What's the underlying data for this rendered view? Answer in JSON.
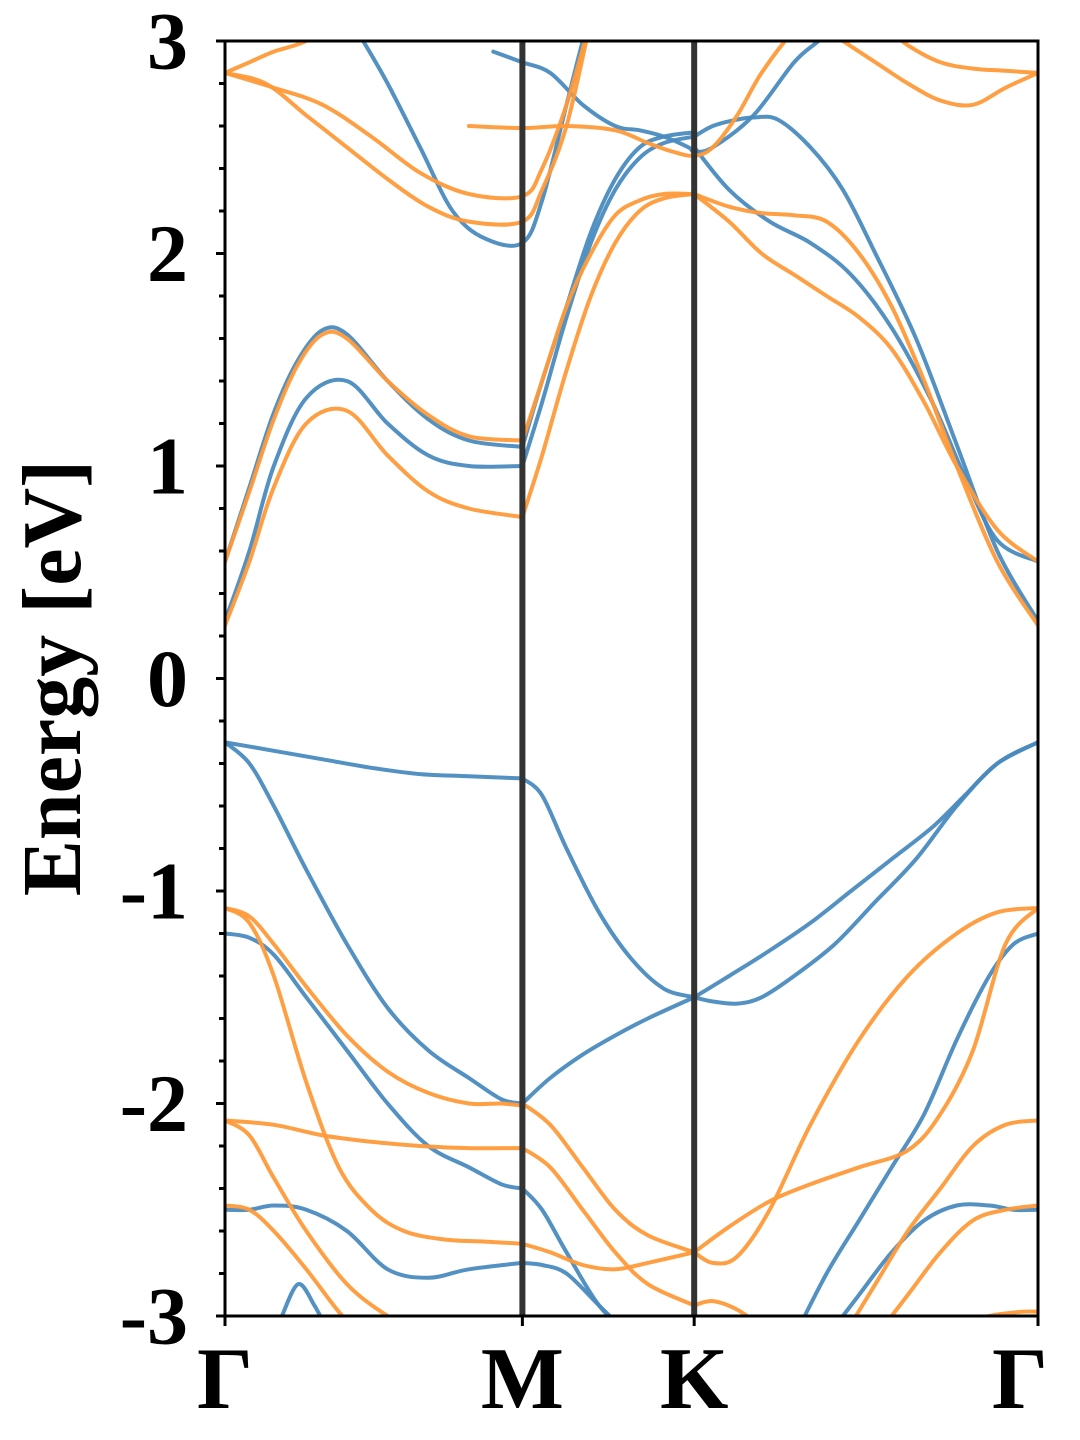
{
  "chart_data": {
    "type": "line",
    "title": "",
    "xlabel": "",
    "ylabel": "Energy [eV]",
    "ylim": [
      -3,
      3
    ],
    "xlim": [
      0,
      1
    ],
    "grid": false,
    "legend": "none",
    "x_ticks": [
      {
        "value": 0.0,
        "label": "Γ"
      },
      {
        "value": 0.3658,
        "label": "M"
      },
      {
        "value": 0.5771,
        "label": "K"
      },
      {
        "value": 1.0,
        "label": "Γ"
      }
    ],
    "y_ticks": [
      {
        "value": 3,
        "label": "3"
      },
      {
        "value": 2,
        "label": "2"
      },
      {
        "value": 1,
        "label": "1"
      },
      {
        "value": 0,
        "label": "0"
      },
      {
        "value": -1,
        "label": "-1"
      },
      {
        "value": -2,
        "label": "-2"
      },
      {
        "value": -3,
        "label": "-3"
      }
    ],
    "y_minor_step": 0.2,
    "vlines": [
      0.3658,
      0.5771
    ],
    "colors": {
      "blue": "#4a8bbf",
      "orange": "#ff9a3a",
      "axis": "#000000",
      "vline": "#333333"
    },
    "series": [
      {
        "color": "blue",
        "x": [
          0,
          0.03,
          0.06,
          0.09,
          0.12,
          0.15,
          0.2,
          0.25,
          0.3,
          0.3658
        ],
        "y": [
          0.55,
          0.9,
          1.25,
          1.5,
          1.64,
          1.62,
          1.4,
          1.22,
          1.12,
          1.09
        ]
      },
      {
        "color": "blue",
        "x": [
          0,
          0.03,
          0.06,
          0.1,
          0.15,
          0.2,
          0.25,
          0.3,
          0.3658
        ],
        "y": [
          0.27,
          0.6,
          1.0,
          1.32,
          1.4,
          1.2,
          1.05,
          1.0,
          1.0
        ]
      },
      {
        "color": "blue",
        "x": [
          0.3658,
          0.39,
          0.42,
          0.45,
          0.48,
          0.51,
          0.54,
          0.5771
        ],
        "y": [
          1.0,
          1.3,
          1.7,
          2.05,
          2.3,
          2.45,
          2.52,
          2.55
        ]
      },
      {
        "color": "blue",
        "x": [
          0.3658,
          0.39,
          0.42,
          0.45,
          0.48,
          0.51,
          0.54,
          0.5771
        ],
        "y": [
          1.09,
          1.4,
          1.75,
          2.1,
          2.35,
          2.5,
          2.55,
          2.57
        ]
      },
      {
        "color": "blue",
        "x": [
          0.5771,
          0.6,
          0.63,
          0.65,
          0.68,
          0.72,
          0.76,
          0.8,
          0.85,
          0.9,
          0.95,
          1.0
        ],
        "y": [
          2.55,
          2.6,
          2.63,
          2.64,
          2.63,
          2.5,
          2.3,
          2.0,
          1.6,
          1.1,
          0.6,
          0.27
        ]
      },
      {
        "color": "blue",
        "x": [
          0.5771,
          0.62,
          0.67,
          0.72,
          0.77,
          0.82,
          0.87,
          0.91,
          0.95,
          1.0
        ],
        "y": [
          2.5,
          2.3,
          2.15,
          2.05,
          1.9,
          1.65,
          1.3,
          0.95,
          0.65,
          0.55
        ]
      },
      {
        "color": "blue",
        "x": [
          0.17,
          0.2,
          0.24,
          0.28,
          0.32,
          0.3658,
          0.39,
          0.42,
          0.44,
          0.4613
        ],
        "y": [
          3.0,
          2.8,
          2.5,
          2.2,
          2.07,
          2.05,
          2.25,
          2.7,
          3.0,
          3.3
        ]
      },
      {
        "color": "blue",
        "x": [
          0.33,
          0.3658,
          0.4,
          0.44,
          0.48,
          0.51,
          0.54,
          0.57,
          0.5771,
          0.6,
          0.65,
          0.7,
          0.73,
          0.76
        ],
        "y": [
          2.95,
          2.9,
          2.85,
          2.7,
          2.6,
          2.58,
          2.55,
          2.5,
          2.48,
          2.5,
          2.65,
          2.9,
          3.0,
          3.1
        ]
      },
      {
        "color": "blue",
        "x": [
          0,
          0.06,
          0.12,
          0.18,
          0.24,
          0.3,
          0.3658
        ],
        "y": [
          -0.3,
          -0.34,
          -0.38,
          -0.42,
          -0.45,
          -0.46,
          -0.47
        ]
      },
      {
        "color": "blue",
        "x": [
          0.3658,
          0.39,
          0.42,
          0.46,
          0.5,
          0.54,
          0.5771
        ],
        "y": [
          -0.47,
          -0.55,
          -0.8,
          -1.1,
          -1.32,
          -1.46,
          -1.5
        ]
      },
      {
        "color": "blue",
        "x": [
          0.5771,
          0.6,
          0.63,
          0.66,
          0.7,
          0.75,
          0.8,
          0.85,
          0.9,
          0.95,
          1.0
        ],
        "y": [
          -1.5,
          -1.52,
          -1.53,
          -1.5,
          -1.4,
          -1.25,
          -1.05,
          -0.85,
          -0.6,
          -0.4,
          -0.3
        ]
      },
      {
        "color": "blue",
        "x": [
          0.5771,
          0.62,
          0.67,
          0.72,
          0.77,
          0.82,
          0.87,
          0.91,
          0.95,
          1.0
        ],
        "y": [
          -1.5,
          -1.4,
          -1.28,
          -1.15,
          -1.0,
          -0.85,
          -0.7,
          -0.55,
          -0.4,
          -0.3
        ]
      },
      {
        "color": "blue",
        "x": [
          0.3658,
          0.4,
          0.44,
          0.48,
          0.52,
          0.5771
        ],
        "y": [
          -2.0,
          -1.88,
          -1.77,
          -1.68,
          -1.6,
          -1.5
        ]
      },
      {
        "color": "blue",
        "x": [
          0,
          0.03,
          0.06,
          0.1,
          0.15,
          0.2,
          0.25,
          0.3,
          0.34,
          0.3658
        ],
        "y": [
          -0.3,
          -0.4,
          -0.6,
          -0.9,
          -1.25,
          -1.55,
          -1.75,
          -1.88,
          -1.98,
          -2.0
        ]
      },
      {
        "color": "blue",
        "x": [
          0,
          0.03,
          0.06,
          0.1,
          0.15,
          0.2,
          0.25,
          0.3,
          0.34,
          0.3658
        ],
        "y": [
          -1.2,
          -1.22,
          -1.3,
          -1.5,
          -1.75,
          -2.0,
          -2.2,
          -2.3,
          -2.38,
          -2.4
        ]
      },
      {
        "color": "blue",
        "x": [
          0.3658,
          0.39,
          0.42,
          0.46,
          0.5
        ],
        "y": [
          -2.4,
          -2.5,
          -2.7,
          -2.95,
          -3.1
        ]
      },
      {
        "color": "blue",
        "x": [
          0.3658,
          0.39,
          0.42,
          0.46,
          0.5
        ],
        "y": [
          -2.75,
          -2.76,
          -2.8,
          -2.95,
          -3.1
        ]
      },
      {
        "color": "blue",
        "x": [
          0,
          0.03,
          0.06,
          0.1,
          0.15,
          0.2,
          0.25,
          0.3,
          0.3658
        ],
        "y": [
          -2.5,
          -2.5,
          -2.48,
          -2.5,
          -2.6,
          -2.78,
          -2.82,
          -2.78,
          -2.75
        ]
      },
      {
        "color": "blue",
        "x": [
          0.7,
          0.74,
          0.78,
          0.82,
          0.86,
          0.9,
          0.94,
          0.97,
          1.0
        ],
        "y": [
          -3.1,
          -2.8,
          -2.55,
          -2.3,
          -2.05,
          -1.7,
          -1.4,
          -1.25,
          -1.2
        ]
      },
      {
        "color": "blue",
        "x": [
          0.74,
          0.78,
          0.82,
          0.86,
          0.9,
          0.94,
          0.97,
          1.0
        ],
        "y": [
          -3.1,
          -2.9,
          -2.7,
          -2.55,
          -2.48,
          -2.48,
          -2.5,
          -2.5
        ]
      },
      {
        "color": "blue",
        "x": [
          0.07,
          0.09,
          0.11,
          0.13
        ],
        "y": [
          -3.0,
          -2.85,
          -2.95,
          -3.1
        ]
      },
      {
        "color": "orange",
        "x": [
          0,
          0.03,
          0.06,
          0.09,
          0.12,
          0.15,
          0.2,
          0.25,
          0.3,
          0.3658
        ],
        "y": [
          0.55,
          0.88,
          1.22,
          1.48,
          1.62,
          1.6,
          1.4,
          1.24,
          1.14,
          1.12
        ]
      },
      {
        "color": "orange",
        "x": [
          0,
          0.03,
          0.06,
          0.1,
          0.15,
          0.2,
          0.25,
          0.3,
          0.3658
        ],
        "y": [
          0.25,
          0.55,
          0.9,
          1.2,
          1.26,
          1.05,
          0.88,
          0.8,
          0.76
        ]
      },
      {
        "color": "orange",
        "x": [
          0.3658,
          0.39,
          0.42,
          0.45,
          0.48,
          0.51,
          0.54,
          0.5771
        ],
        "y": [
          0.76,
          1.05,
          1.45,
          1.8,
          2.05,
          2.2,
          2.26,
          2.28
        ]
      },
      {
        "color": "orange",
        "x": [
          0.3658,
          0.39,
          0.42,
          0.45,
          0.48,
          0.51,
          0.54,
          0.5771
        ],
        "y": [
          1.12,
          1.4,
          1.75,
          2.0,
          2.18,
          2.25,
          2.28,
          2.28
        ]
      },
      {
        "color": "orange",
        "x": [
          0.5771,
          0.62,
          0.66,
          0.7,
          0.74,
          0.78,
          0.82,
          0.86,
          0.9,
          0.95,
          1.0
        ],
        "y": [
          2.28,
          2.22,
          2.19,
          2.18,
          2.15,
          2.0,
          1.75,
          1.4,
          1.0,
          0.55,
          0.25
        ]
      },
      {
        "color": "orange",
        "x": [
          0.5771,
          0.62,
          0.66,
          0.7,
          0.74,
          0.78,
          0.82,
          0.86,
          0.9,
          0.95,
          1.0
        ],
        "y": [
          2.28,
          2.15,
          2.0,
          1.9,
          1.8,
          1.7,
          1.55,
          1.3,
          1.0,
          0.7,
          0.55
        ]
      },
      {
        "color": "orange",
        "x": [
          0,
          0.05,
          0.1,
          0.15,
          0.2,
          0.25,
          0.3,
          0.3658,
          0.39,
          0.42,
          0.45
        ],
        "y": [
          2.85,
          2.8,
          2.65,
          2.5,
          2.35,
          2.22,
          2.15,
          2.15,
          2.3,
          2.6,
          3.1
        ]
      },
      {
        "color": "orange",
        "x": [
          0,
          0.06,
          0.12,
          0.18,
          0.24,
          0.3,
          0.3658,
          0.39,
          0.42,
          0.45
        ],
        "y": [
          2.85,
          2.78,
          2.7,
          2.55,
          2.38,
          2.28,
          2.27,
          2.4,
          2.7,
          3.1
        ]
      },
      {
        "color": "orange",
        "x": [
          0.3,
          0.3658,
          0.42,
          0.48,
          0.52,
          0.55,
          0.5771,
          0.6,
          0.63,
          0.66,
          0.7,
          0.73
        ],
        "y": [
          2.6,
          2.59,
          2.6,
          2.58,
          2.52,
          2.48,
          2.46,
          2.5,
          2.65,
          2.85,
          3.05,
          3.15
        ]
      },
      {
        "color": "orange",
        "x": [
          0,
          0.03,
          0.06,
          0.1,
          0.14,
          0.18
        ],
        "y": [
          2.85,
          2.9,
          2.95,
          3.0,
          3.1,
          3.2
        ]
      },
      {
        "color": "orange",
        "x": [
          0.72,
          0.76,
          0.8,
          0.84,
          0.88,
          0.92,
          0.96,
          1.0
        ],
        "y": [
          3.1,
          3.0,
          2.9,
          2.8,
          2.72,
          2.7,
          2.78,
          2.85
        ]
      },
      {
        "color": "orange",
        "x": [
          0.76,
          0.8,
          0.84,
          0.88,
          0.92,
          0.96,
          1.0
        ],
        "y": [
          3.2,
          3.1,
          2.98,
          2.9,
          2.87,
          2.86,
          2.85
        ]
      },
      {
        "color": "orange",
        "x": [
          0,
          0.03,
          0.06,
          0.1,
          0.15,
          0.2,
          0.25,
          0.3,
          0.34,
          0.3658
        ],
        "y": [
          -1.08,
          -1.12,
          -1.25,
          -1.45,
          -1.68,
          -1.85,
          -1.95,
          -2.0,
          -2.0,
          -2.01
        ]
      },
      {
        "color": "orange",
        "x": [
          0,
          0.03,
          0.06,
          0.1,
          0.14,
          0.18,
          0.22,
          0.27,
          0.32,
          0.3658
        ],
        "y": [
          -1.08,
          -1.15,
          -1.4,
          -1.9,
          -2.3,
          -2.5,
          -2.6,
          -2.64,
          -2.65,
          -2.66
        ]
      },
      {
        "color": "orange",
        "x": [
          0.3658,
          0.4,
          0.44,
          0.48,
          0.52,
          0.5771
        ],
        "y": [
          -2.0,
          -2.1,
          -2.3,
          -2.5,
          -2.62,
          -2.7
        ]
      },
      {
        "color": "orange",
        "x": [
          0.3658,
          0.4,
          0.44,
          0.48,
          0.52,
          0.5771
        ],
        "y": [
          -2.21,
          -2.3,
          -2.5,
          -2.7,
          -2.85,
          -2.95
        ]
      },
      {
        "color": "orange",
        "x": [
          0.3658,
          0.4,
          0.44,
          0.48,
          0.52,
          0.5771
        ],
        "y": [
          -2.66,
          -2.7,
          -2.76,
          -2.78,
          -2.75,
          -2.7
        ]
      },
      {
        "color": "orange",
        "x": [
          0,
          0.06,
          0.12,
          0.18,
          0.24,
          0.3,
          0.3658
        ],
        "y": [
          -2.08,
          -2.1,
          -2.15,
          -2.18,
          -2.2,
          -2.21,
          -2.21
        ]
      },
      {
        "color": "orange",
        "x": [
          0,
          0.03,
          0.06,
          0.1,
          0.15,
          0.2,
          0.25
        ],
        "y": [
          -2.08,
          -2.15,
          -2.35,
          -2.6,
          -2.85,
          -3.0,
          -3.1
        ]
      },
      {
        "color": "orange",
        "x": [
          0,
          0.03,
          0.06,
          0.1,
          0.14,
          0.17
        ],
        "y": [
          -2.48,
          -2.5,
          -2.6,
          -2.78,
          -2.98,
          -3.1
        ]
      },
      {
        "color": "orange",
        "x": [
          0.5771,
          0.6,
          0.63,
          0.67,
          0.72,
          0.78,
          0.84,
          0.9,
          0.95,
          1.0
        ],
        "y": [
          -2.7,
          -2.75,
          -2.72,
          -2.5,
          -2.1,
          -1.7,
          -1.4,
          -1.2,
          -1.1,
          -1.08
        ]
      },
      {
        "color": "orange",
        "x": [
          0.5771,
          0.62,
          0.67,
          0.72,
          0.78,
          0.84,
          0.88,
          0.92,
          0.96,
          1.0
        ],
        "y": [
          -2.7,
          -2.58,
          -2.46,
          -2.38,
          -2.3,
          -2.22,
          -2.05,
          -1.75,
          -1.25,
          -1.08
        ]
      },
      {
        "color": "orange",
        "x": [
          0.5771,
          0.6,
          0.63,
          0.66,
          0.68
        ],
        "y": [
          -2.95,
          -2.93,
          -2.97,
          -3.05,
          -3.1
        ]
      },
      {
        "color": "orange",
        "x": [
          0.76,
          0.8,
          0.84,
          0.88,
          0.92,
          0.96,
          1.0
        ],
        "y": [
          -3.1,
          -2.85,
          -2.6,
          -2.4,
          -2.2,
          -2.1,
          -2.08
        ]
      },
      {
        "color": "orange",
        "x": [
          0.8,
          0.84,
          0.88,
          0.92,
          0.96,
          1.0
        ],
        "y": [
          -3.1,
          -2.9,
          -2.7,
          -2.55,
          -2.5,
          -2.48
        ]
      },
      {
        "color": "orange",
        "x": [
          0.86,
          0.9,
          0.94,
          0.98,
          1.0
        ],
        "y": [
          -3.1,
          -3.05,
          -3.0,
          -2.98,
          -2.98
        ]
      }
    ]
  }
}
